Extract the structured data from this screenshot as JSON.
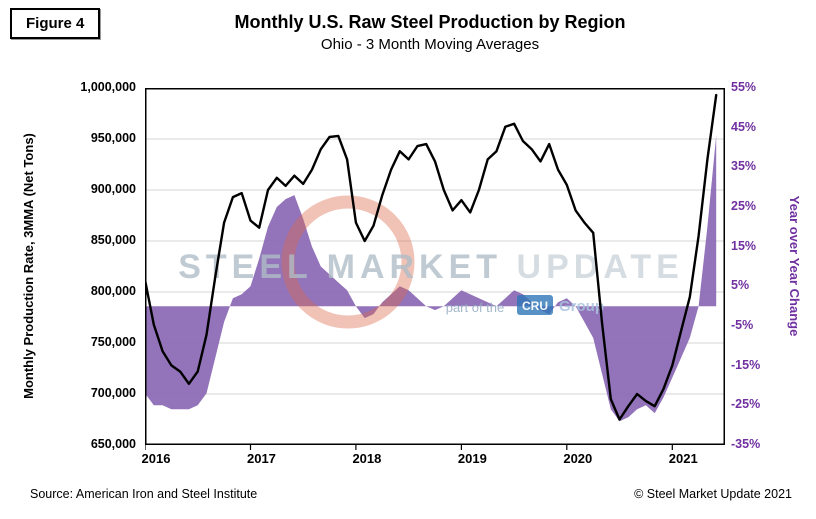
{
  "figure_label": "Figure 4",
  "title": "Monthly U.S. Raw Steel Production by Region",
  "subtitle": "Ohio - 3 Month Moving Averages",
  "footer": {
    "source": "Source: American Iron and Steel Institute",
    "copyright": "© Steel Market Update 2021"
  },
  "watermark": {
    "word1": "STEEL",
    "word2": "MARKET",
    "word3": "UPDATE",
    "tagline_prefix": "part of the",
    "cru": "CRU",
    "group": "Group"
  },
  "colors": {
    "line": "#000000",
    "area": "#8d6bb5",
    "right_axis_text": "#7030A0",
    "gridline": "#d6d6d6",
    "plot_border": "#000000",
    "watermark_ring": "#dd6a4a",
    "watermark_text": "#b0bdc7",
    "watermark_text_light": "#ccd5db",
    "cru_box": "#2e75b6"
  },
  "chart_data": {
    "type": "line",
    "title": "Monthly U.S. Raw Steel Production by Region",
    "subtitle": "Ohio - 3 Month Moving Averages",
    "grid": true,
    "x": [
      "2016-01",
      "2016-02",
      "2016-03",
      "2016-04",
      "2016-05",
      "2016-06",
      "2016-07",
      "2016-08",
      "2016-09",
      "2016-10",
      "2016-11",
      "2016-12",
      "2017-01",
      "2017-02",
      "2017-03",
      "2017-04",
      "2017-05",
      "2017-06",
      "2017-07",
      "2017-08",
      "2017-09",
      "2017-10",
      "2017-11",
      "2017-12",
      "2018-01",
      "2018-02",
      "2018-03",
      "2018-04",
      "2018-05",
      "2018-06",
      "2018-07",
      "2018-08",
      "2018-09",
      "2018-10",
      "2018-11",
      "2018-12",
      "2019-01",
      "2019-02",
      "2019-03",
      "2019-04",
      "2019-05",
      "2019-06",
      "2019-07",
      "2019-08",
      "2019-09",
      "2019-10",
      "2019-11",
      "2019-12",
      "2020-01",
      "2020-02",
      "2020-03",
      "2020-04",
      "2020-05",
      "2020-06",
      "2020-07",
      "2020-08",
      "2020-09",
      "2020-10",
      "2020-11",
      "2020-12",
      "2021-01",
      "2021-02",
      "2021-03",
      "2021-04",
      "2021-05",
      "2021-06"
    ],
    "series": [
      {
        "name": "Monthly Production Rate, 3MMA (Net Tons)",
        "type": "line",
        "axis": "left",
        "values": [
          812000,
          768000,
          742000,
          728000,
          722000,
          710000,
          722000,
          758000,
          815000,
          868000,
          893000,
          897000,
          870000,
          863000,
          900000,
          912000,
          904000,
          914000,
          906000,
          920000,
          940000,
          952000,
          953000,
          930000,
          868000,
          850000,
          865000,
          895000,
          920000,
          938000,
          930000,
          943000,
          945000,
          928000,
          900000,
          880000,
          890000,
          878000,
          900000,
          930000,
          938000,
          962000,
          965000,
          948000,
          940000,
          928000,
          945000,
          920000,
          905000,
          880000,
          868000,
          858000,
          770000,
          695000,
          675000,
          688000,
          700000,
          693000,
          688000,
          705000,
          728000,
          762000,
          795000,
          855000,
          930000,
          993000
        ]
      },
      {
        "name": "Year over Year Change",
        "type": "area",
        "axis": "right",
        "values": [
          -22,
          -25,
          -25,
          -26,
          -26,
          -26,
          -25,
          -22,
          -13,
          -4,
          2,
          3,
          5,
          12,
          20,
          25,
          27,
          28,
          22,
          15,
          10,
          8,
          6,
          4,
          0,
          -3,
          -2,
          1,
          3,
          5,
          4,
          2,
          0,
          -1,
          0,
          2,
          4,
          3,
          2,
          1,
          0,
          2,
          4,
          3,
          1,
          -1,
          -2,
          1,
          2,
          0,
          -4,
          -8,
          -17,
          -26,
          -29,
          -28,
          -26,
          -25,
          -27,
          -23,
          -18,
          -13,
          -8,
          0,
          20,
          43
        ]
      }
    ],
    "left_axis": {
      "label": "Monthly Production Rate, 3MMA (Net Tons)",
      "min": 650000,
      "max": 1000000,
      "tick_step": 50000,
      "tick_labels": [
        "1,000,000",
        "950,000",
        "900,000",
        "850,000",
        "800,000",
        "750,000",
        "700,000",
        "650,000"
      ]
    },
    "right_axis": {
      "label": "Year over Year Change",
      "min": -35,
      "max": 55,
      "tick_step": 10,
      "tick_labels": [
        "55%",
        "45%",
        "35%",
        "25%",
        "15%",
        "5%",
        "-5%",
        "-15%",
        "-25%",
        "-35%"
      ]
    },
    "x_axis": {
      "tick_labels": [
        "2016",
        "2017",
        "2018",
        "2019",
        "2020",
        "2021"
      ],
      "domain_start": 2016.0,
      "domain_end": 2021.5
    }
  }
}
